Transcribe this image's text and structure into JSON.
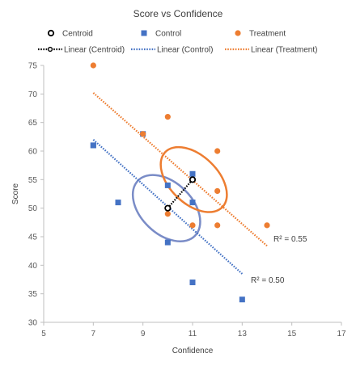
{
  "chart_data": {
    "type": "scatter",
    "title": "Score vs Confidence",
    "xlabel": "Confidence",
    "ylabel": "Score",
    "xlim": [
      5,
      17
    ],
    "ylim": [
      30,
      75
    ],
    "x_ticks": [
      5,
      7,
      9,
      11,
      13,
      15,
      17
    ],
    "y_ticks": [
      30,
      35,
      40,
      45,
      50,
      55,
      60,
      65,
      70,
      75
    ],
    "grid": false,
    "legend_position": "top",
    "legend": [
      {
        "label": "Centroid",
        "kind": "marker",
        "series": "centroid"
      },
      {
        "label": "Control",
        "kind": "marker",
        "series": "control"
      },
      {
        "label": "Treatment",
        "kind": "marker",
        "series": "treatment"
      },
      {
        "label": "Linear (Centroid)",
        "kind": "line",
        "series": "centroid"
      },
      {
        "label": "Linear (Control)",
        "kind": "line",
        "series": "control"
      },
      {
        "label": "Linear (Treatment)",
        "kind": "line",
        "series": "treatment"
      }
    ],
    "series": [
      {
        "name": "Control",
        "key": "control",
        "marker": "square",
        "color": "#4472C4",
        "points": [
          [
            7,
            61
          ],
          [
            7,
            61
          ],
          [
            8,
            51
          ],
          [
            9,
            63
          ],
          [
            10,
            54
          ],
          [
            10,
            44
          ],
          [
            11,
            56
          ],
          [
            11,
            51
          ],
          [
            11,
            37
          ],
          [
            13,
            34
          ]
        ],
        "trendline": {
          "x": [
            7,
            13
          ],
          "y": [
            62,
            38.5
          ]
        },
        "r2_label": "R² = 0.50",
        "ellipse": {
          "cx": 9.95,
          "cy": 50,
          "rx": 1.6,
          "ry": 4.5,
          "color": "#7A8CC7"
        }
      },
      {
        "name": "Treatment",
        "key": "treatment",
        "marker": "circle",
        "color": "#ED7D31",
        "points": [
          [
            7,
            75
          ],
          [
            10,
            66
          ],
          [
            9,
            63
          ],
          [
            10,
            49
          ],
          [
            11,
            47
          ],
          [
            12,
            60
          ],
          [
            12,
            53
          ],
          [
            12,
            47
          ],
          [
            14,
            47
          ]
        ],
        "trendline": {
          "x": [
            7,
            14
          ],
          "y": [
            70.2,
            43.4
          ]
        },
        "r2_label": "R² = 0.55",
        "ellipse": {
          "cx": 11.05,
          "cy": 55,
          "rx": 1.6,
          "ry": 4.2,
          "color": "#ED7D31"
        }
      },
      {
        "name": "Centroid",
        "key": "centroid",
        "marker": "circle",
        "color": "#000000",
        "points": [
          [
            10,
            50
          ],
          [
            11,
            55
          ]
        ],
        "trendline": {
          "x": [
            10,
            11
          ],
          "y": [
            50,
            55
          ]
        }
      }
    ]
  }
}
